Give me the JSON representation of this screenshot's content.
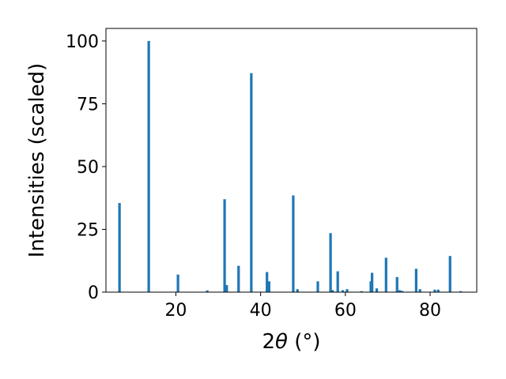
{
  "chart_data": {
    "type": "bar",
    "xlabel_prefix": "2",
    "xlabel_theta": "θ",
    "xlabel_suffix": " (°)",
    "ylabel": "Intensities (scaled)",
    "xlim": [
      3.5,
      91.0
    ],
    "ylim": [
      0,
      105
    ],
    "xticks": [
      20,
      40,
      60,
      80
    ],
    "yticks": [
      0,
      25,
      50,
      75,
      100
    ],
    "bar_width": 0.6,
    "bar_color": "#1f77b4",
    "grid": false,
    "x": [
      6.7,
      13.6,
      20.5,
      27.4,
      31.5,
      32.0,
      34.8,
      37.8,
      41.5,
      42.0,
      47.7,
      48.7,
      53.5,
      56.5,
      57.0,
      58.2,
      59.4,
      60.4,
      63.8,
      66.0,
      66.3,
      67.4,
      69.6,
      72.2,
      72.8,
      73.4,
      76.7,
      77.6,
      81.1,
      81.9,
      84.7,
      87.2
    ],
    "values": [
      35.5,
      100.0,
      7.0,
      0.7,
      37.0,
      2.8,
      10.5,
      87.2,
      8.0,
      4.3,
      38.5,
      1.2,
      4.3,
      23.5,
      0.8,
      8.3,
      0.8,
      1.2,
      0.4,
      4.3,
      7.7,
      1.5,
      13.7,
      6.0,
      0.8,
      0.5,
      9.3,
      1.2,
      1.0,
      1.0,
      14.4,
      0.4
    ]
  }
}
